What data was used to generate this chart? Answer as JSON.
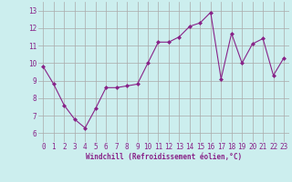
{
  "x": [
    0,
    1,
    2,
    3,
    4,
    5,
    6,
    7,
    8,
    9,
    10,
    11,
    12,
    13,
    14,
    15,
    16,
    17,
    18,
    19,
    20,
    21,
    22,
    23
  ],
  "y": [
    9.8,
    8.8,
    7.6,
    6.8,
    6.3,
    7.4,
    8.6,
    8.6,
    8.7,
    8.8,
    10.0,
    11.2,
    11.2,
    11.5,
    12.1,
    12.3,
    12.9,
    9.1,
    11.7,
    10.0,
    11.1,
    11.4,
    9.3,
    10.3
  ],
  "line_color": "#882288",
  "marker": "D",
  "marker_size": 2,
  "bg_color": "#cceeee",
  "grid_color": "#aaaaaa",
  "xlabel": "Windchill (Refroidissement éolien,°C)",
  "ylabel": "",
  "title": "",
  "xlim": [
    -0.5,
    23.5
  ],
  "ylim": [
    5.5,
    13.5
  ],
  "yticks": [
    6,
    7,
    8,
    9,
    10,
    11,
    12,
    13
  ],
  "xticks": [
    0,
    1,
    2,
    3,
    4,
    5,
    6,
    7,
    8,
    9,
    10,
    11,
    12,
    13,
    14,
    15,
    16,
    17,
    18,
    19,
    20,
    21,
    22,
    23
  ],
  "xlabel_fontsize": 5.5,
  "tick_fontsize": 5.5
}
